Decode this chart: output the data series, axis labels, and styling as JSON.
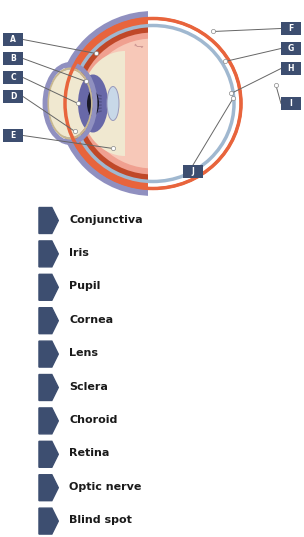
{
  "bg_color": "#ffffff",
  "label_bg": "#3d4e70",
  "row_bg": "#d5d7e8",
  "row_text_color": "#1a1a1a",
  "white_gap": "#ffffff",
  "labels": [
    "A",
    "B",
    "C",
    "D",
    "E",
    "F",
    "G",
    "H",
    "I",
    "J"
  ],
  "terms": [
    "Conjunctiva",
    "Iris",
    "Pupil",
    "Cornea",
    "Lens",
    "Sclera",
    "Choroid",
    "Retina",
    "Optic nerve",
    "Blind spot"
  ],
  "sclera_color": "#e8643c",
  "choroid_dark": "#c04828",
  "choroid_ring": "#b03820",
  "retina_fill": "#f0a090",
  "vitreous_color": "#f7c8b8",
  "aqueous_color": "#f0e8d0",
  "iris_color": "#6868a8",
  "iris_dark": "#484878",
  "pupil_color": "#181828",
  "lens_color": "#c8d8e8",
  "conj_color": "#9090c0",
  "nerve_tan": "#d0b898",
  "nerve_orange": "#e07040",
  "nerve_stripe_dark": "#903820",
  "nerve_fiber_blue": "#6060a0",
  "nerve_fiber_red": "#c04040",
  "line_color": "#666666",
  "dot_fill": "#ffffff",
  "dot_edge": "#888888",
  "vessel_color": "#c08888"
}
